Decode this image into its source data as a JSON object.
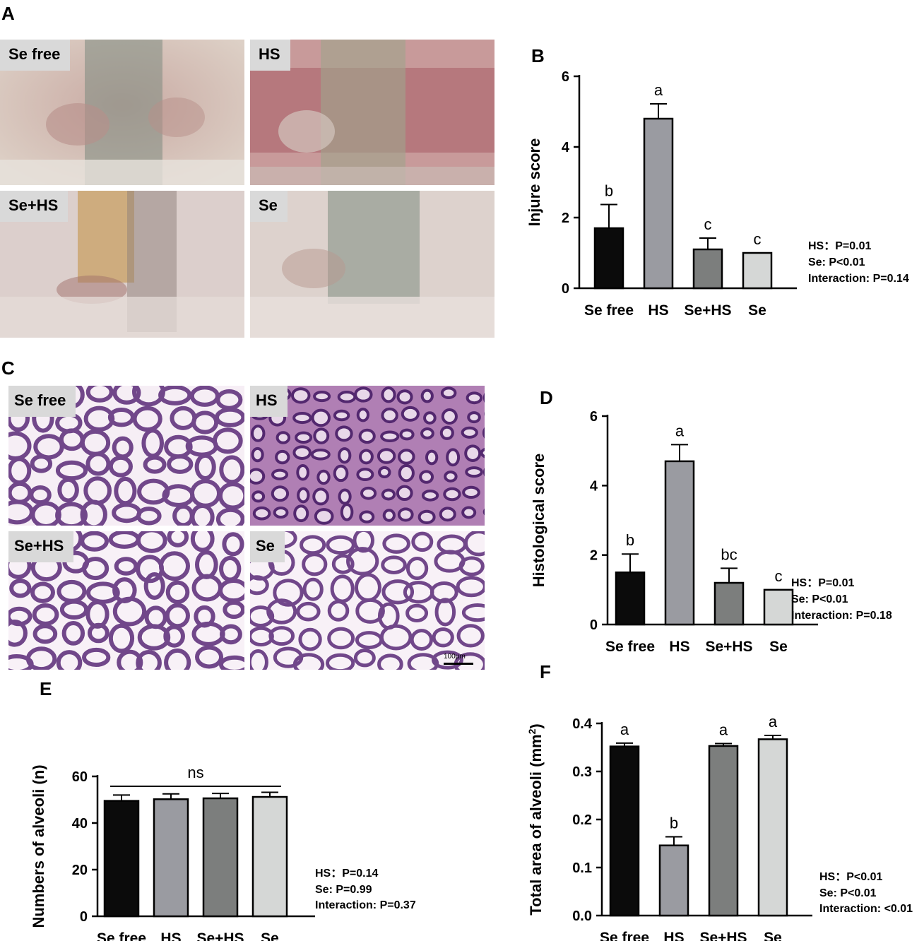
{
  "panel_letters": {
    "a": "A",
    "b": "B",
    "c": "C",
    "d": "D",
    "e": "E",
    "f": "F"
  },
  "photos_a": [
    "Se free",
    "HS",
    "Se+HS",
    "Se"
  ],
  "photos_c": [
    "Se free",
    "HS",
    "Se+HS",
    "Se"
  ],
  "scale_bar": "100μm",
  "colors": {
    "se_free": "#0b0b0b",
    "hs": "#9a9ba1",
    "se_hs": "#7c7e7d",
    "se": "#d5d7d6",
    "tissue_bg": "#d8c6bb",
    "histo_bg": "#f7f0f6",
    "histo_stain": "#5a2a78"
  },
  "chart_data": [
    {
      "id": "B",
      "type": "bar",
      "categories": [
        "Se free",
        "HS",
        "Se+HS",
        "Se"
      ],
      "values": [
        1.7,
        4.8,
        1.1,
        1.0
      ],
      "errors": [
        0.67,
        0.42,
        0.32,
        0.0
      ],
      "letters": [
        "b",
        "a",
        "c",
        "c"
      ],
      "ylabel": "Injure score",
      "ylim": [
        0,
        6
      ],
      "yticks": [
        "0",
        "2",
        "4",
        "6"
      ],
      "stats": [
        "HS：P=0.01",
        "Se: P<0.01",
        "Interaction: P=0.14"
      ]
    },
    {
      "id": "D",
      "type": "bar",
      "categories": [
        "Se free",
        "HS",
        "Se+HS",
        "Se"
      ],
      "values": [
        1.5,
        4.7,
        1.2,
        1.0
      ],
      "errors": [
        0.53,
        0.48,
        0.42,
        0.0
      ],
      "letters": [
        "b",
        "a",
        "bc",
        "c"
      ],
      "ylabel": "Histological score",
      "ylim": [
        0,
        6
      ],
      "yticks": [
        "0",
        "2",
        "4",
        "6"
      ],
      "stats": [
        "HS：P=0.01",
        "Se: P<0.01",
        "Interaction: P=0.18"
      ]
    },
    {
      "id": "E",
      "type": "bar",
      "categories": [
        "Se free",
        "HS",
        "Se+HS",
        "Se"
      ],
      "values": [
        49.5,
        50.2,
        50.6,
        51.2
      ],
      "errors": [
        2.5,
        2.3,
        2.1,
        2.0
      ],
      "letters": [
        "",
        "",
        "",
        ""
      ],
      "annotation": "ns",
      "ylabel": "Numbers of alveoli (n)",
      "ylim": [
        0,
        60
      ],
      "yticks": [
        "0",
        "20",
        "40",
        "60"
      ],
      "stats": [
        "HS：P=0.14",
        "Se: P=0.99",
        "Interaction: P=0.37"
      ]
    },
    {
      "id": "F",
      "type": "bar",
      "categories": [
        "Se free",
        "HS",
        "Se+HS",
        "Se"
      ],
      "values": [
        0.352,
        0.146,
        0.353,
        0.367
      ],
      "errors": [
        0.007,
        0.018,
        0.005,
        0.008
      ],
      "letters": [
        "a",
        "b",
        "a",
        "a"
      ],
      "ylabel": "Total area of alveoli (mm",
      "ylabel_sup": "2",
      "ylabel_end": ")",
      "ylim": [
        0,
        0.4
      ],
      "yticks": [
        "0.0",
        "0.1",
        "0.2",
        "0.3",
        "0.4"
      ],
      "stats": [
        "HS：P<0.01",
        "Se: P<0.01",
        "Interaction: <0.01"
      ]
    }
  ]
}
